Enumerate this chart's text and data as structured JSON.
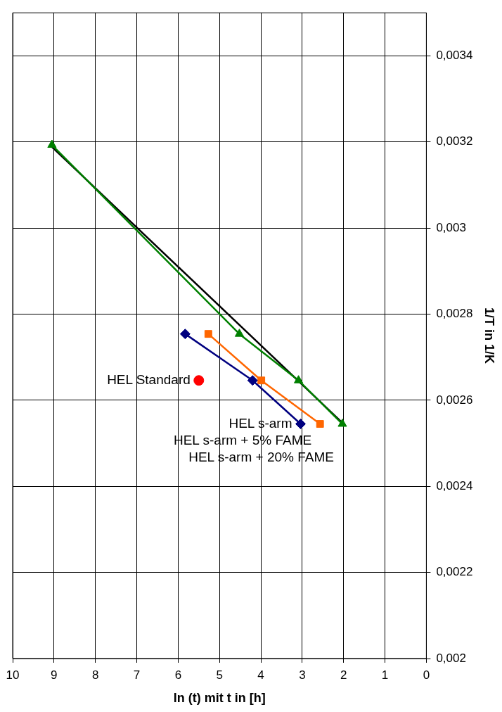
{
  "chart_data": {
    "type": "line",
    "xlabel": "ln (t) mit t in [h]",
    "ylabel": "1/T in 1/K",
    "xlim": [
      10,
      0
    ],
    "xticks": [
      10,
      9,
      8,
      7,
      6,
      5,
      4,
      3,
      2,
      1,
      0
    ],
    "ylim": [
      0.002,
      0.0035
    ],
    "yticks": [
      {
        "value": 0.002,
        "label": "0,002"
      },
      {
        "value": 0.0022,
        "label": "0,0022"
      },
      {
        "value": 0.0024,
        "label": "0,0024"
      },
      {
        "value": 0.0026,
        "label": "0,0026"
      },
      {
        "value": 0.0028,
        "label": "0,0028"
      },
      {
        "value": 0.003,
        "label": "0,003"
      },
      {
        "value": 0.0032,
        "label": "0,0032"
      },
      {
        "value": 0.0034,
        "label": "0,0034"
      }
    ],
    "grid": true,
    "legend": false,
    "series": [
      {
        "name": "HEL Standard",
        "type": "scatter",
        "marker": "circle",
        "color": "#ff0000",
        "x": [
          5.5
        ],
        "values": [
          0.002646
        ]
      },
      {
        "name": "HEL s-arm",
        "type": "line",
        "marker": "diamond",
        "color": "#000080",
        "x": [
          3.04,
          4.2,
          5.83
        ],
        "values": [
          0.002545,
          0.002646,
          0.002754
        ]
      },
      {
        "name": "HEL s-arm + 5% FAME",
        "type": "line",
        "marker": "square",
        "color": "#ff6600",
        "x": [
          2.57,
          3.99,
          5.27
        ],
        "values": [
          0.002545,
          0.002646,
          0.002754
        ]
      },
      {
        "name": "HEL s-arm + 20% FAME",
        "type": "line",
        "marker": "triangle",
        "color": "#008000",
        "x": [
          2.03,
          3.09,
          4.52,
          9.05
        ],
        "values": [
          0.002545,
          0.002646,
          0.002754,
          0.003193
        ]
      },
      {
        "type": "line",
        "marker": "none",
        "color": "#000000",
        "x": [
          2.0,
          9.1
        ],
        "values": [
          0.002545,
          0.003193
        ]
      }
    ]
  }
}
